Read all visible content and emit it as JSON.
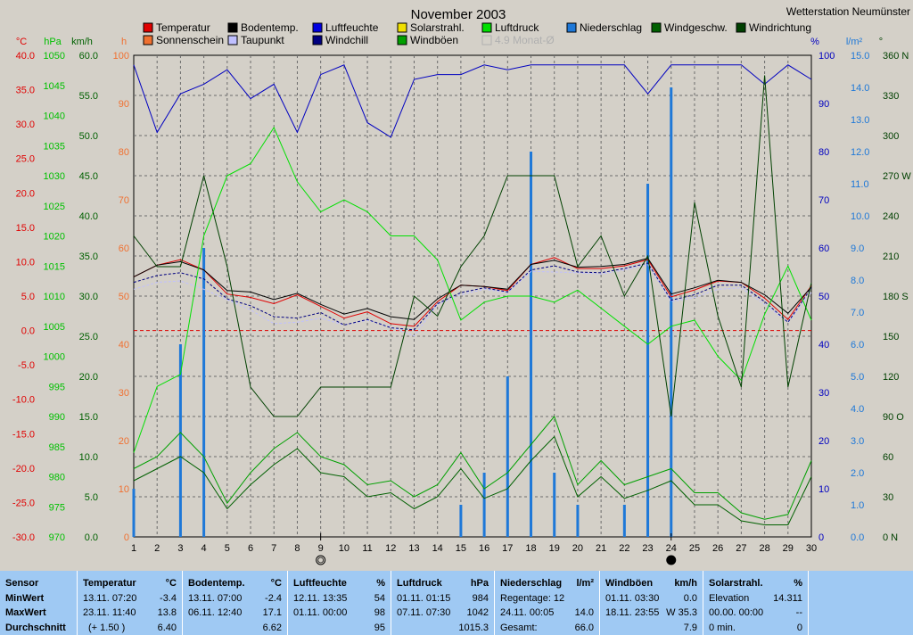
{
  "chart_data": {
    "type": "line",
    "title": "November 2003",
    "station": "Wetterstation Neumünster",
    "x": [
      1,
      2,
      3,
      4,
      5,
      6,
      7,
      8,
      9,
      10,
      11,
      12,
      13,
      14,
      15,
      16,
      17,
      18,
      19,
      20,
      21,
      22,
      23,
      24,
      25,
      26,
      27,
      28,
      29,
      30
    ],
    "xlim": [
      1,
      30
    ],
    "legend": [
      {
        "label": "Temperatur",
        "color": "#e00000"
      },
      {
        "label": "Sonnenschein",
        "color": "#f07030"
      },
      {
        "label": "Bodentemp.",
        "color": "#000000"
      },
      {
        "label": "Taupunkt",
        "color": "#c0c0ff"
      },
      {
        "label": "Luftfeuchte",
        "color": "#0000e0"
      },
      {
        "label": "Windchill",
        "color": "#000080"
      },
      {
        "label": "Solarstrahl.",
        "color": "#f0e000"
      },
      {
        "label": "Windböen",
        "color": "#00a000"
      },
      {
        "label": "Luftdruck",
        "color": "#00e000"
      },
      {
        "label": "4.9 Monat-Ø",
        "color": "#c8c8c8"
      },
      {
        "label": "Niederschlag",
        "color": "#1e78d8"
      },
      {
        "label": "Windgeschw.",
        "color": "#006000"
      },
      {
        "label": "Windrichtung",
        "color": "#004000"
      }
    ],
    "axes": {
      "temp": {
        "unit": "°C",
        "ticks": [
          "40.0",
          "35.0",
          "30.0",
          "25.0",
          "20.0",
          "15.0",
          "10.0",
          "5.0",
          "0.0",
          "-5.0",
          "-10.0",
          "-15.0",
          "-20.0",
          "-25.0",
          "-30.0"
        ],
        "color": "#e00000"
      },
      "pressure": {
        "unit": "hPa",
        "ticks": [
          "1050",
          "1045",
          "1040",
          "1035",
          "1030",
          "1025",
          "1020",
          "1015",
          "1010",
          "1005",
          "1000",
          "995",
          "990",
          "985",
          "980",
          "975",
          "970"
        ],
        "color": "#00c000"
      },
      "wind": {
        "unit": "km/h",
        "ticks": [
          "60.0",
          "55.0",
          "50.0",
          "45.0",
          "40.0",
          "35.0",
          "30.0",
          "25.0",
          "20.0",
          "15.0",
          "10.0",
          "5.0",
          "0.0"
        ],
        "color": "#006000"
      },
      "hours": {
        "unit": "h",
        "ticks": [
          "100",
          "90",
          "80",
          "70",
          "60",
          "50",
          "40",
          "30",
          "20",
          "10",
          "0"
        ],
        "color": "#f07030"
      },
      "humidity": {
        "unit": "%",
        "ticks": [
          "100",
          "90",
          "80",
          "70",
          "60",
          "50",
          "40",
          "30",
          "20",
          "10",
          "0"
        ],
        "color": "#0000c0"
      },
      "rain": {
        "unit": "l/m²",
        "ticks": [
          "15.0",
          "14.0",
          "13.0",
          "12.0",
          "11.0",
          "10.0",
          "9.0",
          "8.0",
          "7.0",
          "6.0",
          "5.0",
          "4.0",
          "3.0",
          "2.0",
          "1.0",
          "0.0"
        ],
        "color": "#1e78d8"
      },
      "direction": {
        "unit": "°",
        "ticks": [
          "360 N",
          "330",
          "300",
          "270 W",
          "240",
          "210",
          "180 S",
          "150",
          "120",
          "90 O",
          "60",
          "30",
          "0 N"
        ],
        "color": "#004000"
      }
    },
    "series": [
      {
        "name": "Temperatur",
        "axis": "temp",
        "color": "#e00000",
        "values": [
          7.8,
          9.5,
          10.3,
          8.8,
          5.3,
          4.8,
          3.9,
          5.2,
          3.5,
          1.8,
          2.7,
          1.0,
          0.6,
          4.2,
          6.6,
          6.4,
          5.8,
          9.6,
          10.6,
          9.0,
          9.0,
          9.4,
          10.3,
          4.9,
          5.9,
          7.2,
          7.0,
          4.7,
          1.6,
          6.5
        ]
      },
      {
        "name": "Bodentemp.",
        "axis": "temp",
        "color": "#000000",
        "values": [
          7.8,
          9.5,
          10.0,
          8.8,
          5.8,
          5.6,
          4.5,
          5.4,
          3.8,
          2.4,
          3.2,
          2.0,
          1.6,
          4.6,
          6.6,
          6.4,
          6.0,
          9.6,
          10.2,
          9.2,
          9.3,
          9.6,
          10.5,
          5.3,
          6.2,
          7.3,
          7.0,
          5.2,
          2.5,
          6.3
        ]
      },
      {
        "name": "Taupunkt",
        "axis": "temp",
        "color": "#c0c0ff",
        "values": [
          6.0,
          7.0,
          7.2,
          6.0,
          4.5,
          3.0,
          1.0,
          1.2,
          1.8,
          0.8,
          1.5,
          0.5,
          -0.8,
          3.8,
          5.2,
          6.0,
          5.5,
          8.6,
          8.5,
          8.4,
          8.2,
          8.8,
          9.6,
          4.2,
          4.8,
          6.0,
          6.2,
          3.8,
          1.2,
          5.5
        ]
      },
      {
        "name": "Windchill",
        "axis": "temp",
        "color": "#000080",
        "values": [
          7.0,
          8.0,
          8.4,
          7.5,
          4.6,
          3.6,
          2.0,
          1.8,
          2.6,
          0.8,
          1.6,
          0.4,
          0.1,
          3.9,
          5.5,
          6.2,
          5.6,
          8.8,
          9.4,
          8.5,
          8.4,
          9.0,
          9.8,
          4.4,
          5.2,
          6.6,
          6.6,
          4.2,
          1.2,
          6.2
        ]
      },
      {
        "name": "Luftfeuchte",
        "axis": "humidity",
        "color": "#0000c0",
        "values": [
          98,
          84,
          92,
          94,
          97,
          91,
          94,
          84,
          96,
          98,
          86,
          83,
          95,
          96,
          96,
          98,
          97,
          98,
          98,
          98,
          98,
          98,
          92,
          98,
          98,
          98,
          98,
          94,
          98,
          95
        ]
      },
      {
        "name": "Luftdruck",
        "axis": "pressure",
        "color": "#00e000",
        "values": [
          984,
          995,
          997,
          1020,
          1030,
          1032,
          1038,
          1029,
          1024,
          1026,
          1024,
          1020,
          1020,
          1016,
          1006,
          1009,
          1010,
          1010,
          1009,
          1011,
          1008,
          1005,
          1002,
          1005,
          1006,
          1000,
          996,
          1007,
          1015,
          1006
        ]
      },
      {
        "name": "Windgeschw.",
        "axis": "wind",
        "color": "#006000",
        "values": [
          7.0,
          8.5,
          10.0,
          8.0,
          3.5,
          6.5,
          9.0,
          11.0,
          8.0,
          7.5,
          5.0,
          5.5,
          3.5,
          5.0,
          8.5,
          4.8,
          6.0,
          9.5,
          12.5,
          5.0,
          7.5,
          4.8,
          5.8,
          7.0,
          4.0,
          4.0,
          2.0,
          1.5,
          1.5,
          7.5
        ]
      },
      {
        "name": "Windböen",
        "axis": "wind",
        "color": "#00a000",
        "values": [
          8.5,
          10.0,
          13.0,
          10.0,
          4.2,
          8.0,
          11.0,
          13.0,
          10.0,
          9.0,
          6.5,
          7.0,
          5.0,
          6.5,
          10.5,
          6.0,
          8.0,
          11.5,
          15.0,
          6.5,
          9.5,
          6.5,
          7.5,
          8.5,
          5.5,
          5.5,
          3.0,
          2.2,
          2.8,
          9.5
        ]
      },
      {
        "name": "Windrichtung",
        "axis": "direction",
        "color": "#004000",
        "values": [
          225,
          202,
          202,
          270,
          202,
          112,
          90,
          90,
          112,
          112,
          112,
          112,
          180,
          165,
          202,
          225,
          270,
          270,
          270,
          202,
          225,
          180,
          210,
          90,
          250,
          165,
          112,
          345,
          112,
          190
        ]
      }
    ],
    "precipitation": {
      "name": "Niederschlag",
      "axis": "rain",
      "color": "#1e78d8",
      "days": [
        1,
        3,
        4,
        15,
        16,
        17,
        18,
        19,
        20,
        22,
        23,
        24
      ],
      "values": [
        1.5,
        6.0,
        9.0,
        1.0,
        2.0,
        5.0,
        12.0,
        2.0,
        1.0,
        1.0,
        11.0,
        14.0
      ]
    },
    "zero_line": {
      "axis": "temp",
      "value": 0
    },
    "grid": true,
    "moon_markers": [
      {
        "day": 9,
        "phase": "full"
      },
      {
        "day": 24,
        "phase": "new"
      }
    ]
  },
  "stats": {
    "sensor": {
      "title": "Sensor",
      "rows": [
        "MinWert",
        "MaxWert",
        "Durchschnitt"
      ]
    },
    "temperatur": {
      "title": "Temperatur",
      "unit": "°C",
      "min_time": "13.11.  07:20",
      "min": "-3.4",
      "max_time": "23.11.  11:40",
      "max": "13.8",
      "avg_note": "(+ 1.50 )",
      "avg": "6.40"
    },
    "bodentemp": {
      "title": "Bodentemp.",
      "unit": "°C",
      "min_time": "13.11.  07:00",
      "min": "-2.4",
      "max_time": "06.11.  12:40",
      "max": "17.1",
      "avg": "6.62"
    },
    "luftfeuchte": {
      "title": "Luftfeuchte",
      "unit": "%",
      "min_time": "12.11.  13:35",
      "min": "54",
      "max_time": "01.11.  00:00",
      "max": "98",
      "avg": "95"
    },
    "luftdruck": {
      "title": "Luftdruck",
      "unit": "hPa",
      "min_time": "01.11.  01:15",
      "min": "984",
      "max_time": "07.11.  07:30",
      "max": "1042",
      "avg": "1015.3"
    },
    "niederschlag": {
      "title": "Niederschlag",
      "unit": "l/m²",
      "r1_label": "Regentage: 12",
      "r1_val": "",
      "r2_label": "24.11.  00:05",
      "r2_val": "14.0",
      "r3_label": "Gesamt:",
      "r3_val": "66.0"
    },
    "windboeen": {
      "title": "Windböen",
      "unit": "km/h",
      "min_time": "01.11.  03:30",
      "min": "0.0",
      "max_time": "18.11.  23:55",
      "max": "W 35.3",
      "avg": "7.9"
    },
    "solarstrahl": {
      "title": "Solarstrahl.",
      "unit": "%",
      "r1_label": "Elevation",
      "r1_val": "14.311",
      "r2_label": "00.00.  00:00",
      "r2_val": "--",
      "r3_label": "0 min.",
      "r3_val": "0"
    }
  }
}
